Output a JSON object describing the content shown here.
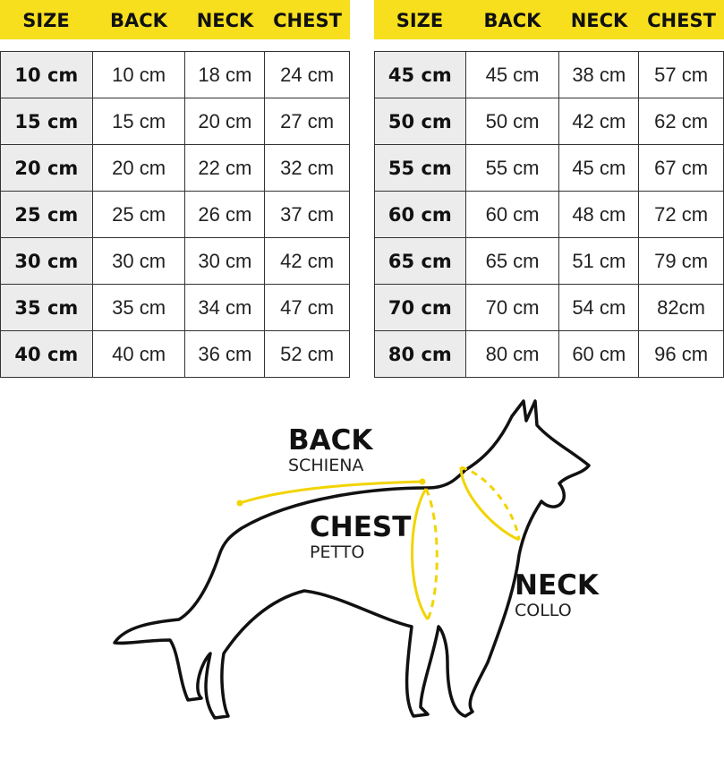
{
  "headers": [
    "SIZE",
    "BACK",
    "NECK",
    "CHEST"
  ],
  "left_table": [
    [
      "10 cm",
      "10 cm",
      "18 cm",
      "24 cm"
    ],
    [
      "15 cm",
      "15 cm",
      "20 cm",
      "27 cm"
    ],
    [
      "20 cm",
      "20 cm",
      "22 cm",
      "32 cm"
    ],
    [
      "25 cm",
      "25 cm",
      "26 cm",
      "37 cm"
    ],
    [
      "30 cm",
      "30 cm",
      "30 cm",
      "42 cm"
    ],
    [
      "35 cm",
      "35 cm",
      "34 cm",
      "47 cm"
    ],
    [
      "40 cm",
      "40 cm",
      "36 cm",
      "52 cm"
    ]
  ],
  "right_table": [
    [
      "45 cm",
      "45 cm",
      "38 cm",
      "57 cm"
    ],
    [
      "50 cm",
      "50 cm",
      "42 cm",
      "62 cm"
    ],
    [
      "55 cm",
      "55 cm",
      "45 cm",
      "67 cm"
    ],
    [
      "60 cm",
      "60 cm",
      "48 cm",
      "72 cm"
    ],
    [
      "65 cm",
      "65 cm",
      "51 cm",
      "79 cm"
    ],
    [
      "70 cm",
      "70 cm",
      "54 cm",
      "82cm"
    ],
    [
      "80 cm",
      "80 cm",
      "60 cm",
      "96 cm"
    ]
  ],
  "diagram": {
    "back": {
      "title": "BACK",
      "subtitle": "SCHIENA"
    },
    "chest": {
      "title": "CHEST",
      "subtitle": "PETTO"
    },
    "neck": {
      "title": "NECK",
      "subtitle": "COLLO"
    }
  },
  "colors": {
    "header": "#f7df1e",
    "size_cell": "#ececec",
    "measure_line": "#f2d400",
    "outline": "#111111"
  }
}
